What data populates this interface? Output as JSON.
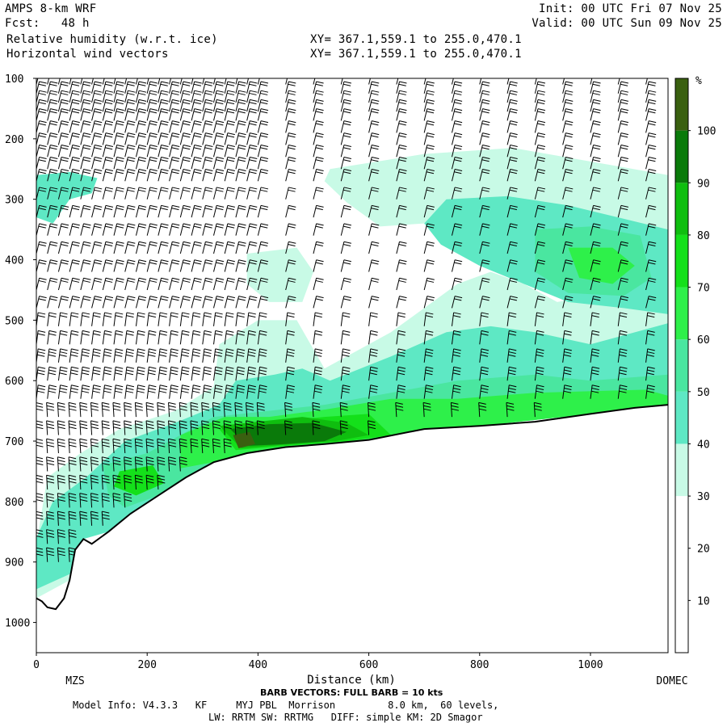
{
  "header": {
    "model": "AMPS 8-km WRF",
    "forecast": "Fcst:   48 h",
    "field": "Relative humidity (w.r.t. ice)",
    "overlay": "Horizontal wind vectors",
    "init": "Init: 00 UTC Fri 07 Nov 25",
    "valid": "Valid: 00 UTC Sun 09 Nov 25",
    "xy1": "XY= 367.1,559.1 to 255.0,470.1",
    "xy2": "XY= 367.1,559.1 to 255.0,470.1"
  },
  "footer": {
    "barb_note": "BARB VECTORS: FULL BARB = 10 kts",
    "model_info": "Model Info: V4.3.3   KF     MYJ PBL  Morrison         8.0 km,  60 levels,",
    "physics": "LW: RRTM SW: RRTMG   DIFF: simple KM: 2D Smagor"
  },
  "colors": {
    "background": "#ffffff",
    "terrain": "#000000",
    "rh_30": "#c8fae6",
    "rh_40": "#5ee8c4",
    "rh_50": "#4ae6a0",
    "rh_60": "#2ef04a",
    "rh_70": "#14e01a",
    "rh_80": "#0fbe0f",
    "rh_90": "#0a7a0a",
    "rh_100": "#3a6010"
  },
  "chart_data": {
    "type": "heatmap",
    "title": "Relative humidity (w.r.t. ice)",
    "xlabel": "Distance (km)",
    "ylabel": "",
    "xlim": [
      0,
      1140
    ],
    "ylim": [
      1050,
      100
    ],
    "y_scale": "pressure (hPa), increasing downward",
    "x_ticks": [
      "0",
      "200",
      "400",
      "600",
      "800",
      "1000"
    ],
    "y_ticks": [
      "100",
      "200",
      "300",
      "400",
      "500",
      "600",
      "700",
      "800",
      "900",
      "1000"
    ],
    "x_endpoints": [
      "MZS",
      "DOMEC"
    ],
    "colorbar": {
      "unit": "%",
      "labels": [
        "10",
        "20",
        "30",
        "40",
        "50",
        "60",
        "70",
        "80",
        "90",
        "100"
      ],
      "levels": [
        0,
        10,
        20,
        30,
        40,
        50,
        60,
        70,
        80,
        90,
        100,
        110
      ],
      "colors": [
        "#ffffff",
        "#ffffff",
        "#ffffff",
        "#c8fae6",
        "#5ee8c4",
        "#4ae6a0",
        "#2ef04a",
        "#14e01a",
        "#0fbe0f",
        "#0a7a0a",
        "#3a6010"
      ]
    },
    "terrain_surface": {
      "x": [
        0,
        10,
        20,
        35,
        50,
        60,
        70,
        85,
        100,
        130,
        170,
        220,
        270,
        320,
        380,
        450,
        520,
        600,
        700,
        800,
        900,
        1000,
        1080,
        1140
      ],
      "p": [
        960,
        965,
        975,
        978,
        960,
        930,
        880,
        862,
        870,
        850,
        820,
        790,
        760,
        735,
        720,
        710,
        705,
        698,
        680,
        675,
        668,
        655,
        645,
        640
      ]
    },
    "rh_regions": [
      {
        "value": 30,
        "points": [
          [
            0,
            870
          ],
          [
            20,
            760
          ],
          [
            80,
            720
          ],
          [
            150,
            680
          ],
          [
            250,
            650
          ],
          [
            320,
            610
          ],
          [
            330,
            540
          ],
          [
            400,
            500
          ],
          [
            470,
            500
          ],
          [
            520,
            580
          ],
          [
            600,
            540
          ],
          [
            640,
            520
          ],
          [
            700,
            480
          ],
          [
            760,
            440
          ],
          [
            820,
            420
          ],
          [
            880,
            440
          ],
          [
            940,
            470
          ],
          [
            1000,
            460
          ],
          [
            1080,
            450
          ],
          [
            1140,
            455
          ],
          [
            1140,
            640
          ],
          [
            1000,
            655
          ],
          [
            800,
            675
          ],
          [
            600,
            698
          ],
          [
            450,
            710
          ],
          [
            320,
            735
          ],
          [
            220,
            790
          ],
          [
            130,
            850
          ],
          [
            85,
            862
          ],
          [
            60,
            930
          ],
          [
            0,
            960
          ]
        ]
      },
      {
        "value": 30,
        "points": [
          [
            530,
            250
          ],
          [
            700,
            225
          ],
          [
            860,
            215
          ],
          [
            1140,
            260
          ],
          [
            1140,
            400
          ],
          [
            1080,
            440
          ],
          [
            960,
            420
          ],
          [
            880,
            395
          ],
          [
            800,
            370
          ],
          [
            700,
            340
          ],
          [
            620,
            345
          ],
          [
            560,
            305
          ],
          [
            520,
            270
          ]
        ]
      },
      {
        "value": 30,
        "points": [
          [
            380,
            390
          ],
          [
            470,
            380
          ],
          [
            500,
            420
          ],
          [
            480,
            470
          ],
          [
            420,
            470
          ],
          [
            380,
            440
          ]
        ]
      },
      {
        "value": 40,
        "points": [
          [
            0,
            860
          ],
          [
            30,
            800
          ],
          [
            90,
            760
          ],
          [
            160,
            700
          ],
          [
            250,
            670
          ],
          [
            330,
            640
          ],
          [
            360,
            600
          ],
          [
            430,
            590
          ],
          [
            480,
            580
          ],
          [
            530,
            600
          ],
          [
            640,
            560
          ],
          [
            740,
            520
          ],
          [
            820,
            510
          ],
          [
            900,
            520
          ],
          [
            1000,
            540
          ],
          [
            1140,
            505
          ],
          [
            1140,
            640
          ],
          [
            1000,
            655
          ],
          [
            800,
            675
          ],
          [
            600,
            698
          ],
          [
            450,
            710
          ],
          [
            320,
            735
          ],
          [
            220,
            790
          ],
          [
            130,
            850
          ],
          [
            85,
            862
          ],
          [
            60,
            920
          ],
          [
            0,
            945
          ]
        ]
      },
      {
        "value": 40,
        "points": [
          [
            740,
            300
          ],
          [
            850,
            295
          ],
          [
            960,
            310
          ],
          [
            1140,
            350
          ],
          [
            1140,
            490
          ],
          [
            1060,
            480
          ],
          [
            960,
            470
          ],
          [
            880,
            440
          ],
          [
            800,
            410
          ],
          [
            730,
            375
          ],
          [
            700,
            340
          ]
        ]
      },
      {
        "value": 40,
        "points": [
          [
            0,
            260
          ],
          [
            60,
            255
          ],
          [
            110,
            265
          ],
          [
            100,
            290
          ],
          [
            60,
            300
          ],
          [
            30,
            340
          ],
          [
            0,
            330
          ]
        ]
      },
      {
        "value": 50,
        "points": [
          [
            120,
            740
          ],
          [
            200,
            720
          ],
          [
            260,
            690
          ],
          [
            320,
            660
          ],
          [
            420,
            650
          ],
          [
            520,
            640
          ],
          [
            640,
            620
          ],
          [
            760,
            600
          ],
          [
            900,
            590
          ],
          [
            1000,
            600
          ],
          [
            1140,
            590
          ],
          [
            1140,
            640
          ],
          [
            1000,
            655
          ],
          [
            800,
            675
          ],
          [
            600,
            698
          ],
          [
            450,
            710
          ],
          [
            320,
            735
          ],
          [
            220,
            790
          ],
          [
            160,
            810
          ],
          [
            130,
            790
          ]
        ]
      },
      {
        "value": 50,
        "points": [
          [
            900,
            350
          ],
          [
            1000,
            345
          ],
          [
            1090,
            360
          ],
          [
            1110,
            430
          ],
          [
            1060,
            460
          ],
          [
            960,
            455
          ],
          [
            900,
            420
          ]
        ]
      },
      {
        "value": 60,
        "points": [
          [
            260,
            690
          ],
          [
            340,
            660
          ],
          [
            420,
            660
          ],
          [
            520,
            648
          ],
          [
            640,
            630
          ],
          [
            760,
            630
          ],
          [
            900,
            620
          ],
          [
            1100,
            615
          ],
          [
            1140,
            625
          ],
          [
            1140,
            640
          ],
          [
            1000,
            655
          ],
          [
            800,
            675
          ],
          [
            600,
            698
          ],
          [
            450,
            710
          ],
          [
            320,
            735
          ],
          [
            260,
            745
          ]
        ]
      },
      {
        "value": 60,
        "points": [
          [
            960,
            380
          ],
          [
            1040,
            380
          ],
          [
            1080,
            410
          ],
          [
            1040,
            440
          ],
          [
            980,
            430
          ]
        ]
      },
      {
        "value": 70,
        "points": [
          [
            150,
            750
          ],
          [
            210,
            740
          ],
          [
            230,
            770
          ],
          [
            180,
            790
          ],
          [
            140,
            775
          ]
        ]
      },
      {
        "value": 70,
        "points": [
          [
            330,
            680
          ],
          [
            420,
            670
          ],
          [
            520,
            660
          ],
          [
            600,
            655
          ],
          [
            640,
            690
          ],
          [
            560,
            700
          ],
          [
            450,
            708
          ],
          [
            360,
            715
          ]
        ]
      },
      {
        "value": 80,
        "points": [
          [
            330,
            675
          ],
          [
            400,
            668
          ],
          [
            480,
            660
          ],
          [
            560,
            670
          ],
          [
            600,
            690
          ],
          [
            540,
            700
          ],
          [
            450,
            706
          ],
          [
            370,
            712
          ]
        ]
      },
      {
        "value": 90,
        "points": [
          [
            350,
            680
          ],
          [
            420,
            672
          ],
          [
            500,
            670
          ],
          [
            560,
            685
          ],
          [
            520,
            700
          ],
          [
            450,
            705
          ],
          [
            380,
            708
          ]
        ]
      },
      {
        "value": 100,
        "points": [
          [
            355,
            690
          ],
          [
            385,
            685
          ],
          [
            395,
            705
          ],
          [
            365,
            712
          ]
        ]
      }
    ],
    "wind_barbs": {
      "note": "BARB VECTORS: FULL BARB = 10 kts",
      "columns_x": [
        0,
        20,
        40,
        60,
        80,
        100,
        120,
        140,
        160,
        180,
        200,
        220,
        240,
        260,
        280,
        300,
        320,
        340,
        360,
        380,
        400,
        450,
        500,
        550,
        600,
        650,
        700,
        750,
        800,
        850,
        900,
        950,
        1000,
        1050,
        1100,
        1140
      ],
      "levels_p": [
        110,
        125,
        140,
        155,
        170,
        190,
        210,
        230,
        250,
        270,
        300,
        330,
        360,
        390,
        420,
        450,
        480,
        510,
        540,
        570,
        600,
        630,
        660,
        690,
        720,
        750,
        780,
        810,
        840,
        870,
        900
      ]
    }
  }
}
